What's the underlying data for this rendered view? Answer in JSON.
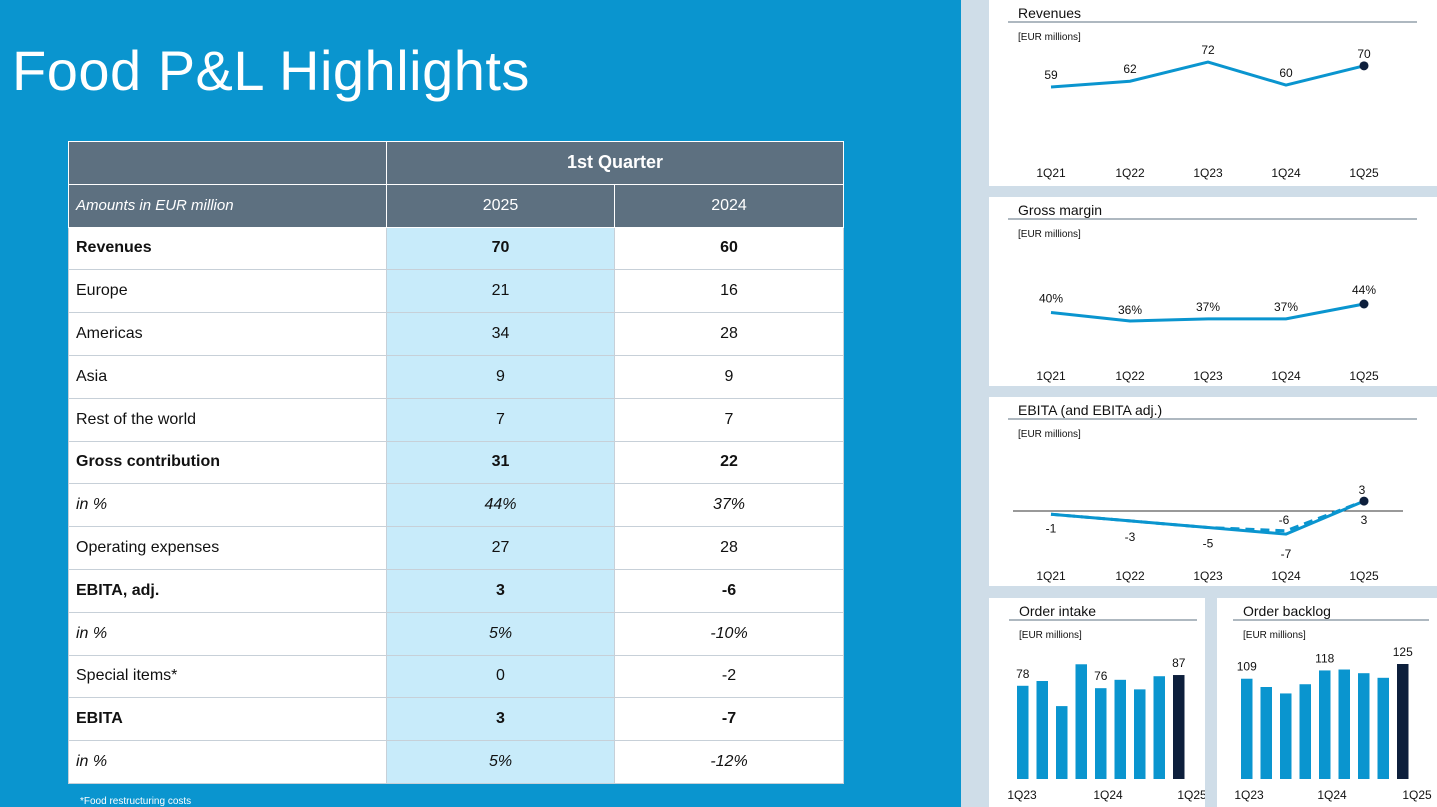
{
  "title": "Food P&L Highlights",
  "table": {
    "header_group": "1st Quarter",
    "first_col_header": "Amounts in EUR million",
    "year_a": "2025",
    "year_b": "2024",
    "rows": [
      {
        "label": "Revenues",
        "a": "70",
        "b": "60",
        "style": "bold"
      },
      {
        "label": "Europe",
        "a": "21",
        "b": "16",
        "style": "normal"
      },
      {
        "label": "Americas",
        "a": "34",
        "b": "28",
        "style": "normal"
      },
      {
        "label": "Asia",
        "a": "9",
        "b": "9",
        "style": "normal"
      },
      {
        "label": "Rest of the world",
        "a": "7",
        "b": "7",
        "style": "normal"
      },
      {
        "label": "Gross contribution",
        "a": "31",
        "b": "22",
        "style": "bold"
      },
      {
        "label": "in %",
        "a": "44%",
        "b": "37%",
        "style": "ital"
      },
      {
        "label": "Operating expenses",
        "a": "27",
        "b": "28",
        "style": "normal"
      },
      {
        "label": "EBITA, adj.",
        "a": "3",
        "b": "-6",
        "style": "bold"
      },
      {
        "label": "in %",
        "a": "5%",
        "b": "-10%",
        "style": "ital"
      },
      {
        "label": "Special items*",
        "a": "0",
        "b": "-2",
        "style": "normal"
      },
      {
        "label": "EBITA",
        "a": "3",
        "b": "-7",
        "style": "bold"
      },
      {
        "label": "in %",
        "a": "5%",
        "b": "-12%",
        "style": "ital"
      }
    ]
  },
  "footnote": "*Food restructuring costs",
  "colors": {
    "line": "#0a95cf",
    "accent": "#0d1f3c",
    "header": "#5d7080",
    "highlight": "#c8ebfa"
  },
  "chart_data": [
    {
      "type": "line",
      "title": "Revenues",
      "unit": "[EUR millions]",
      "categories": [
        "1Q21",
        "1Q22",
        "1Q23",
        "1Q24",
        "1Q25"
      ],
      "values": [
        59,
        62,
        72,
        60,
        70
      ],
      "labels": [
        "59",
        "62",
        "72",
        "60",
        "70"
      ]
    },
    {
      "type": "line",
      "title": "Gross margin",
      "unit": "[EUR millions]",
      "categories": [
        "1Q21",
        "1Q22",
        "1Q23",
        "1Q24",
        "1Q25"
      ],
      "values": [
        40,
        36,
        37,
        37,
        44
      ],
      "labels": [
        "40%",
        "36%",
        "37%",
        "37%",
        "44%"
      ]
    },
    {
      "type": "line",
      "title": "EBITA (and EBITA adj.)",
      "unit": "[EUR millions]",
      "categories": [
        "1Q21",
        "1Q22",
        "1Q23",
        "1Q24",
        "1Q25"
      ],
      "series": [
        {
          "name": "EBITA",
          "values": [
            -1,
            -3,
            -5,
            -7,
            3
          ],
          "labels": [
            "-1",
            "-3",
            "-5",
            "-7",
            "3"
          ]
        },
        {
          "name": "EBITA adj.",
          "values": [
            -1,
            -3,
            -5,
            -6,
            3
          ],
          "labels": [
            "",
            "",
            "",
            "-6",
            "3"
          ]
        }
      ]
    },
    {
      "type": "bar",
      "title": "Order intake",
      "unit": "[EUR millions]",
      "tick_labels": [
        "1Q23",
        "1Q24",
        "1Q25"
      ],
      "values": [
        78,
        82,
        61,
        96,
        76,
        83,
        75,
        86,
        87
      ],
      "labels": [
        "78",
        "",
        "",
        "",
        "76",
        "",
        "",
        "",
        "87"
      ]
    },
    {
      "type": "bar",
      "title": "Order backlog",
      "unit": "[EUR millions]",
      "tick_labels": [
        "1Q23",
        "1Q24",
        "1Q25"
      ],
      "values": [
        109,
        100,
        93,
        103,
        118,
        119,
        115,
        110,
        125
      ],
      "labels": [
        "109",
        "",
        "",
        "",
        "118",
        "",
        "",
        "",
        "125"
      ]
    }
  ]
}
